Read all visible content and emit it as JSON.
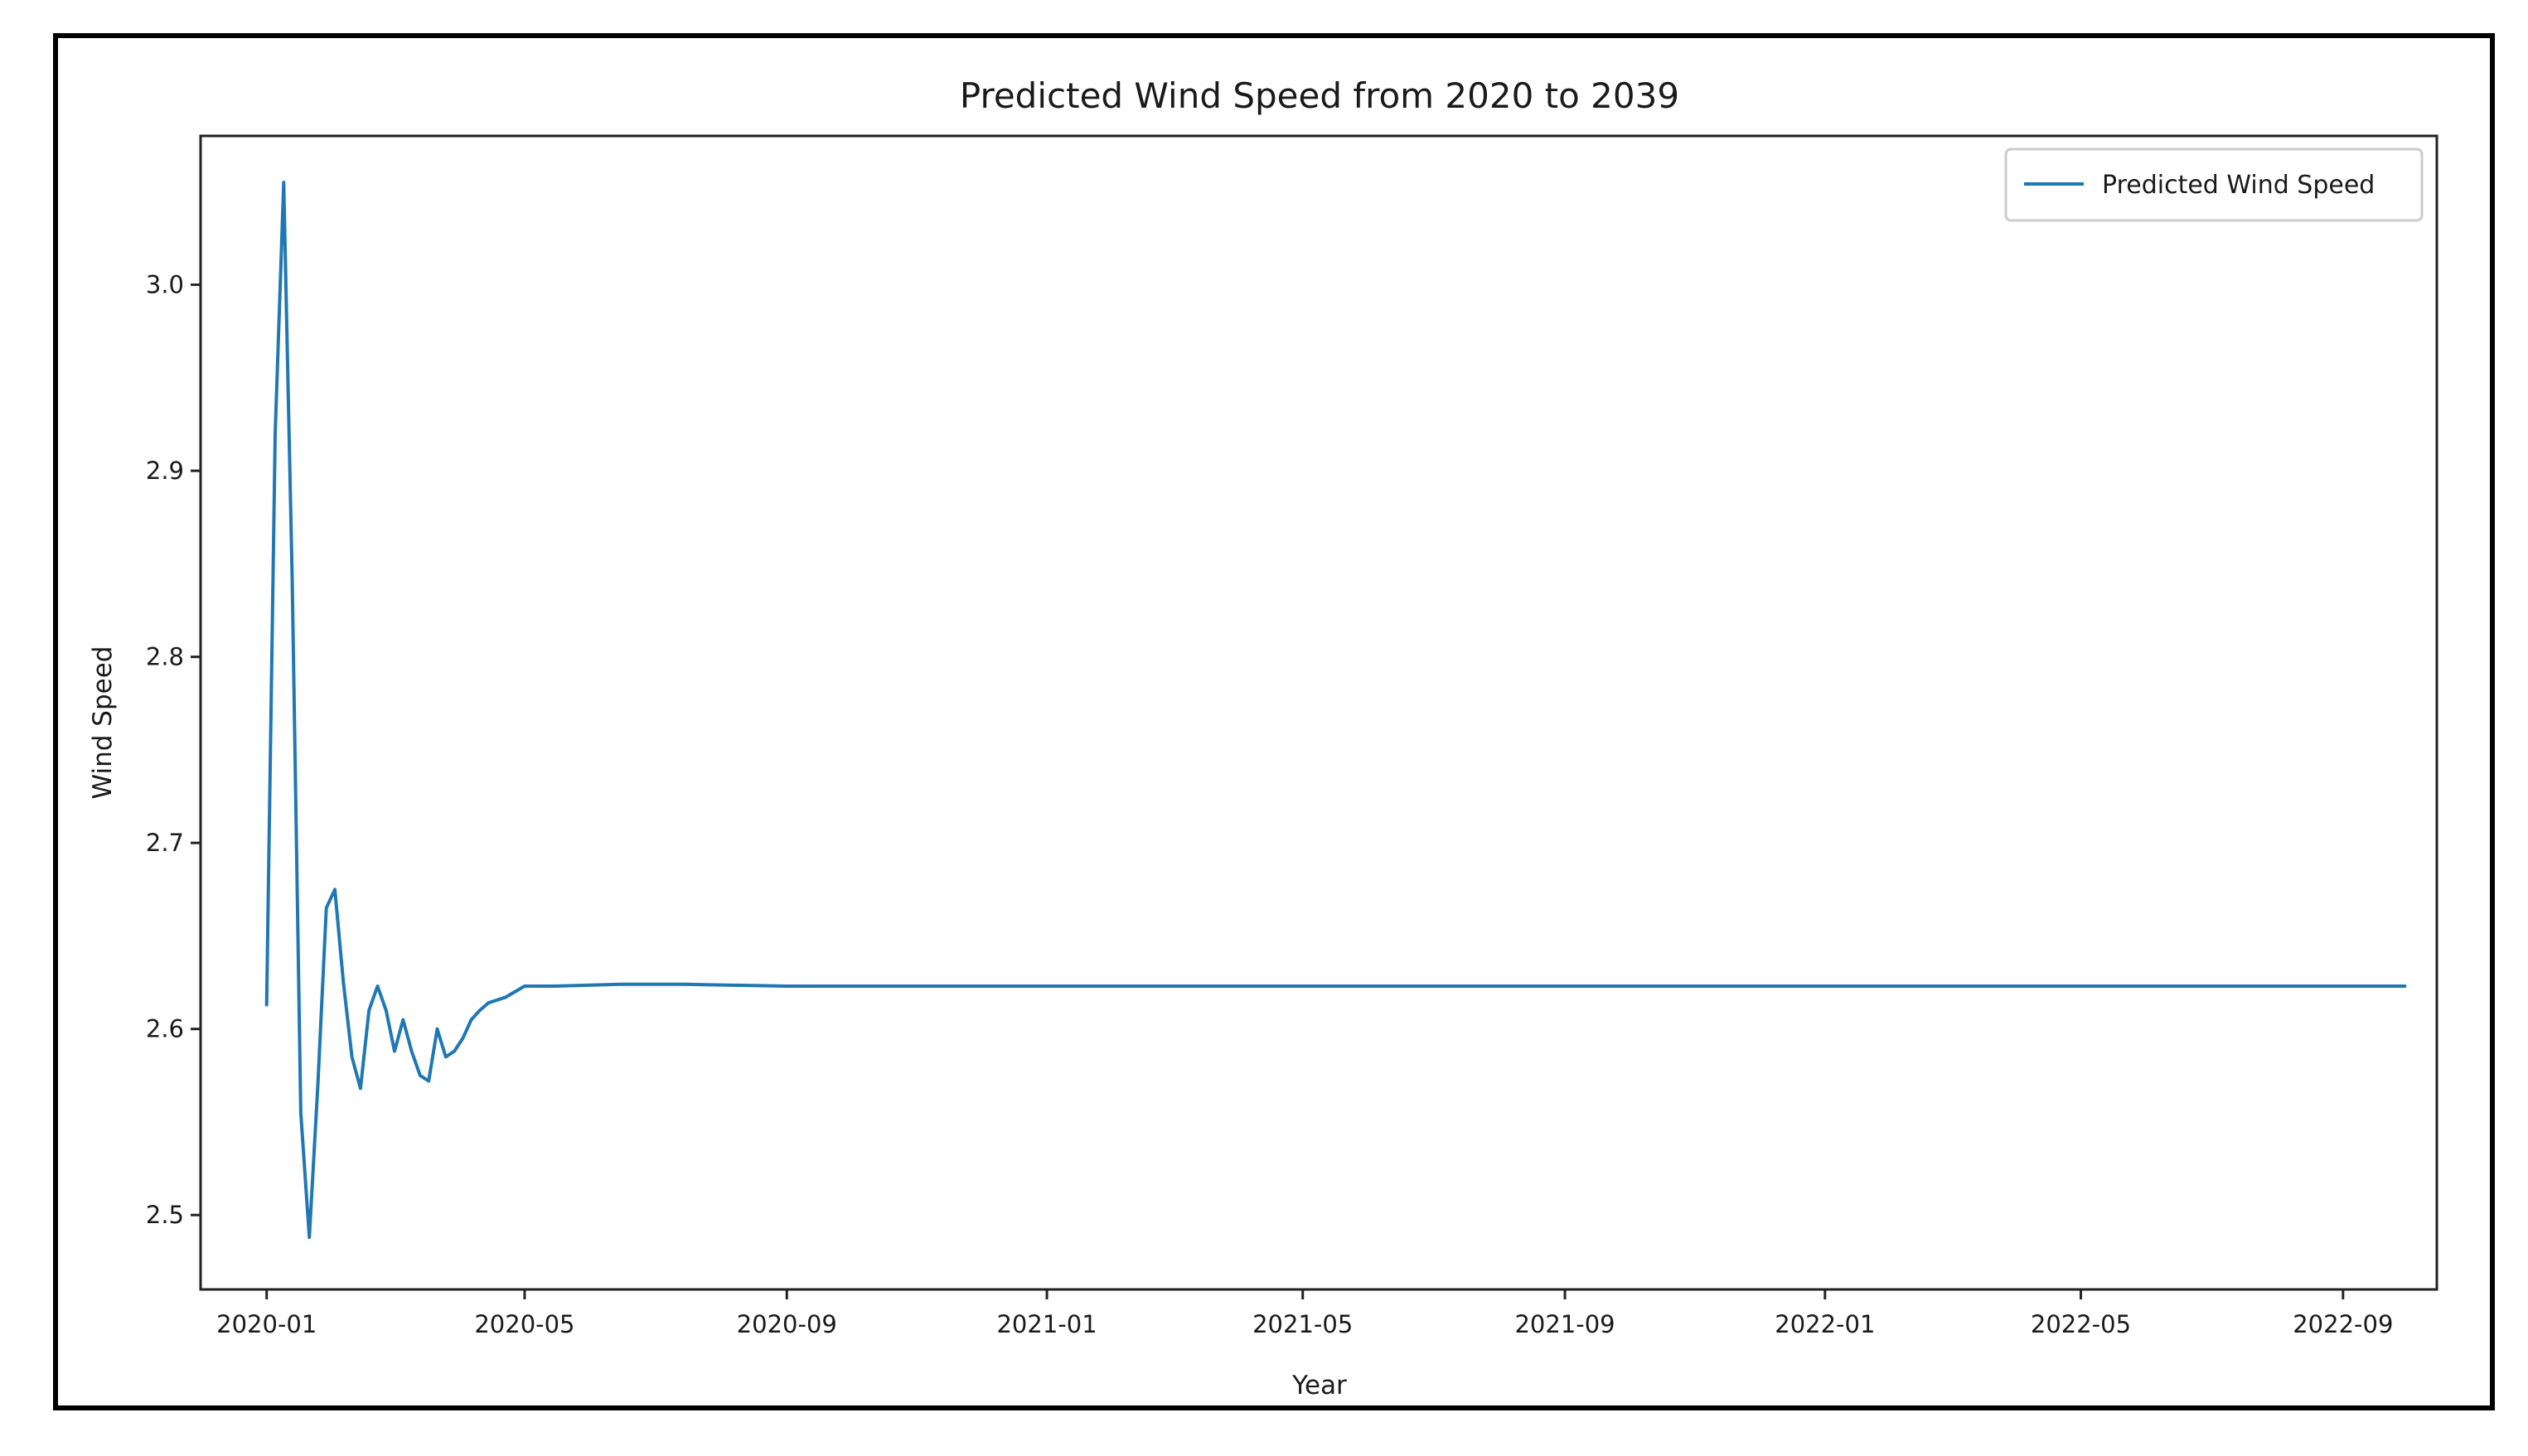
{
  "chart_data": {
    "type": "line",
    "title": "Predicted Wind Speed from 2020 to 2039",
    "xlabel": "Year",
    "ylabel": "Wind Speed",
    "x_type": "date",
    "xlim": [
      "2019-12-01",
      "2022-10-15"
    ],
    "ylim": [
      2.46,
      3.08
    ],
    "x_ticks": [
      "2020-01",
      "2020-05",
      "2020-09",
      "2021-01",
      "2021-05",
      "2021-09",
      "2022-01",
      "2022-05",
      "2022-09"
    ],
    "y_ticks": [
      2.5,
      2.6,
      2.7,
      2.8,
      2.9,
      3.0
    ],
    "y_tick_labels": [
      "2.5",
      "2.6",
      "2.7",
      "2.8",
      "2.9",
      "3.0"
    ],
    "grid": false,
    "legend_position": "upper right",
    "series": [
      {
        "name": "Predicted Wind Speed",
        "color": "#1f77b4",
        "x": [
          "2020-01-01",
          "2020-01-05",
          "2020-01-09",
          "2020-01-13",
          "2020-01-17",
          "2020-01-21",
          "2020-01-25",
          "2020-01-29",
          "2020-02-02",
          "2020-02-06",
          "2020-02-10",
          "2020-02-14",
          "2020-02-18",
          "2020-02-22",
          "2020-02-26",
          "2020-03-01",
          "2020-03-05",
          "2020-03-09",
          "2020-03-13",
          "2020-03-17",
          "2020-03-21",
          "2020-03-25",
          "2020-03-29",
          "2020-04-02",
          "2020-04-06",
          "2020-04-10",
          "2020-04-14",
          "2020-04-22",
          "2020-05-01",
          "2020-05-15",
          "2020-06-15",
          "2020-07-15",
          "2020-09-01",
          "2020-12-01",
          "2021-06-01",
          "2021-12-01",
          "2022-06-01",
          "2022-09-30"
        ],
        "values": [
          2.613,
          2.92,
          3.055,
          2.84,
          2.555,
          2.488,
          2.57,
          2.665,
          2.675,
          2.625,
          2.585,
          2.568,
          2.61,
          2.623,
          2.61,
          2.588,
          2.605,
          2.588,
          2.575,
          2.572,
          2.6,
          2.585,
          2.588,
          2.595,
          2.605,
          2.61,
          2.614,
          2.617,
          2.623,
          2.623,
          2.624,
          2.624,
          2.623,
          2.623,
          2.623,
          2.623,
          2.623,
          2.623
        ]
      }
    ]
  }
}
